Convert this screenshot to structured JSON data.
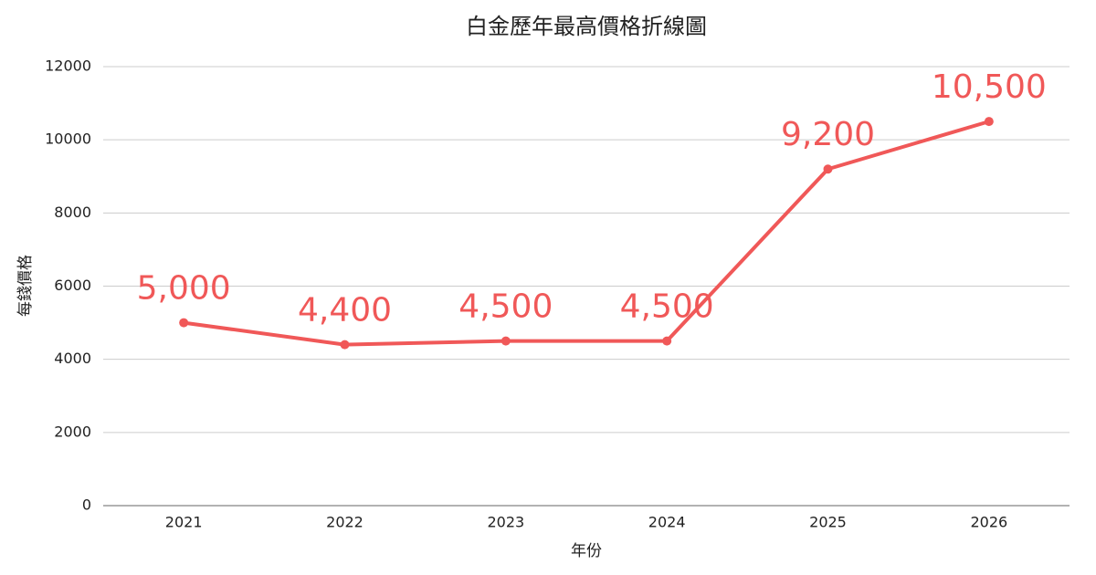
{
  "chart_data": {
    "type": "line",
    "title": "白金歷年最高價格折線圖",
    "x_label": "年份",
    "y_label": "每錢價格",
    "categories": [
      "2021",
      "2022",
      "2023",
      "2024",
      "2025",
      "2026"
    ],
    "series": [
      {
        "name": "每錢價格",
        "color": "#f05858",
        "values": [
          5000,
          4400,
          4500,
          4500,
          9200,
          10500
        ],
        "value_labels": [
          "5,000",
          "4,400",
          "4,500",
          "4,500",
          "9,200",
          "10,500"
        ]
      }
    ],
    "ylim": [
      0,
      12000
    ],
    "yticks": [
      0,
      2000,
      4000,
      6000,
      8000,
      10000,
      12000
    ],
    "grid": true
  }
}
